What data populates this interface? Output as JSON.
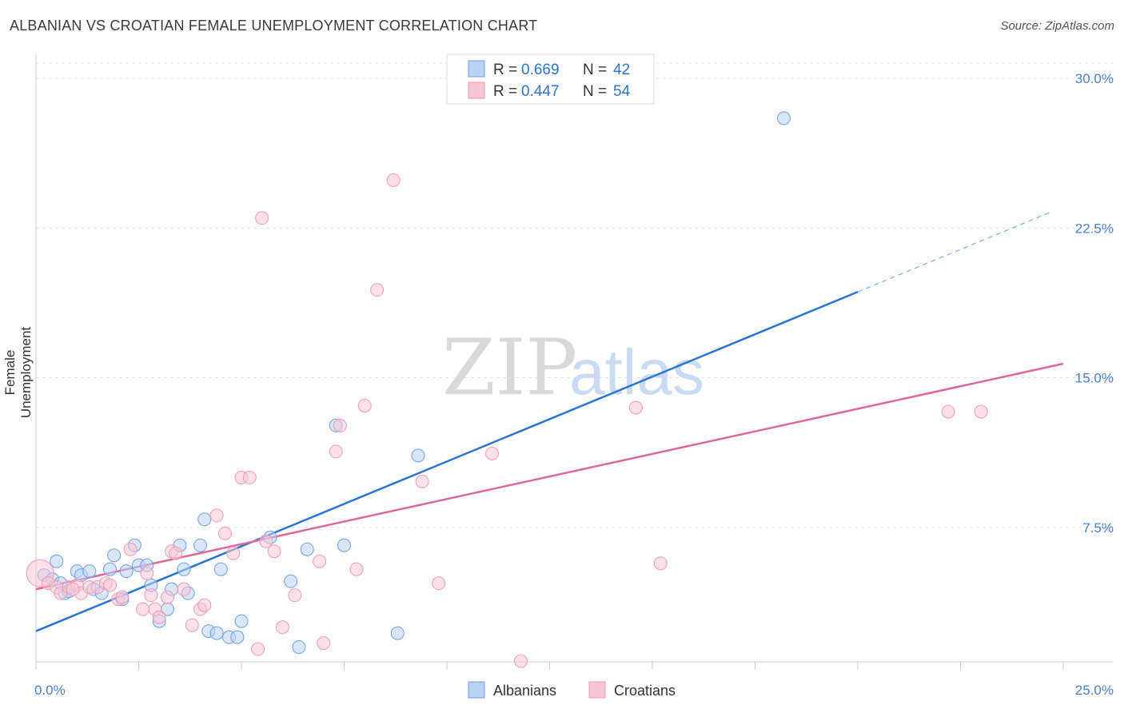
{
  "title": "ALBANIAN VS CROATIAN FEMALE UNEMPLOYMENT CORRELATION CHART",
  "source": "Source: ZipAtlas.com",
  "watermark": {
    "zip": "ZIP",
    "atlas": "atlas"
  },
  "chart_data": {
    "type": "scatter",
    "ylabel": "Female Unemployment",
    "xlim": [
      0,
      25
    ],
    "ylim": [
      0,
      30
    ],
    "x_ticks": [
      "0.0%",
      "25.0%"
    ],
    "y_ticks": [
      {
        "value": 7.5,
        "label": "7.5%"
      },
      {
        "value": 15.0,
        "label": "15.0%"
      },
      {
        "value": 22.5,
        "label": "22.5%"
      },
      {
        "value": 30.0,
        "label": "30.0%"
      }
    ],
    "grid": true,
    "legend": {
      "position": "top-center",
      "entries": [
        {
          "r_label": "R =",
          "r_value": "0.669",
          "n_label": "N =",
          "n_value": "42"
        },
        {
          "r_label": "R =",
          "r_value": "0.447",
          "n_label": "N =",
          "n_value": "54"
        }
      ]
    },
    "series": [
      {
        "name": "Albanians",
        "color": "#6fa0e6",
        "fill": "#b9d1f3",
        "trend_color": "#2b74d2",
        "trend": {
          "x0": 0,
          "y0": 2.3,
          "x1": 20,
          "y1": 19.3,
          "dash_x1": 24.7,
          "dash_y1": 23.3
        },
        "points": [
          [
            0.2,
            5.1
          ],
          [
            0.4,
            4.9
          ],
          [
            0.5,
            5.8
          ],
          [
            0.6,
            4.7
          ],
          [
            0.7,
            4.2
          ],
          [
            0.8,
            4.3
          ],
          [
            1.0,
            5.3
          ],
          [
            1.1,
            5.1
          ],
          [
            1.3,
            5.3
          ],
          [
            1.4,
            4.4
          ],
          [
            1.6,
            4.2
          ],
          [
            1.8,
            5.4
          ],
          [
            1.9,
            6.1
          ],
          [
            2.1,
            3.9
          ],
          [
            2.2,
            5.3
          ],
          [
            2.4,
            6.6
          ],
          [
            2.5,
            5.6
          ],
          [
            2.7,
            5.6
          ],
          [
            2.8,
            4.6
          ],
          [
            3.0,
            2.8
          ],
          [
            3.2,
            3.4
          ],
          [
            3.3,
            4.4
          ],
          [
            3.5,
            6.6
          ],
          [
            3.6,
            5.4
          ],
          [
            3.7,
            4.2
          ],
          [
            4.0,
            6.6
          ],
          [
            4.1,
            7.9
          ],
          [
            4.2,
            2.3
          ],
          [
            4.4,
            2.2
          ],
          [
            4.5,
            5.4
          ],
          [
            4.7,
            2.0
          ],
          [
            4.9,
            2.0
          ],
          [
            5.0,
            2.8
          ],
          [
            5.7,
            7.0
          ],
          [
            6.2,
            4.8
          ],
          [
            6.4,
            1.5
          ],
          [
            6.6,
            6.4
          ],
          [
            7.3,
            12.6
          ],
          [
            7.5,
            6.6
          ],
          [
            8.8,
            2.2
          ],
          [
            9.3,
            11.1
          ],
          [
            18.2,
            28.0
          ]
        ]
      },
      {
        "name": "Croatians",
        "color": "#ef9ab5",
        "fill": "#f7c6d5",
        "trend_color": "#e0679a",
        "trend": {
          "x0": 0,
          "y0": 4.4,
          "x1": 25,
          "y1": 15.7
        },
        "points": [
          [
            0.1,
            5.2
          ],
          [
            0.3,
            4.7
          ],
          [
            0.5,
            4.5
          ],
          [
            0.6,
            4.2
          ],
          [
            0.8,
            4.5
          ],
          [
            1.0,
            4.6
          ],
          [
            1.1,
            4.2
          ],
          [
            1.3,
            4.5
          ],
          [
            1.5,
            4.5
          ],
          [
            1.7,
            4.7
          ],
          [
            1.8,
            4.6
          ],
          [
            2.0,
            3.9
          ],
          [
            2.1,
            4.0
          ],
          [
            2.3,
            6.4
          ],
          [
            2.6,
            3.4
          ],
          [
            2.7,
            5.2
          ],
          [
            2.9,
            3.4
          ],
          [
            3.0,
            3.0
          ],
          [
            3.2,
            4.0
          ],
          [
            3.3,
            6.3
          ],
          [
            3.4,
            6.2
          ],
          [
            3.6,
            4.4
          ],
          [
            3.8,
            2.6
          ],
          [
            4.0,
            3.4
          ],
          [
            4.1,
            3.6
          ],
          [
            4.4,
            8.1
          ],
          [
            4.6,
            7.2
          ],
          [
            4.8,
            6.2
          ],
          [
            5.0,
            10.0
          ],
          [
            5.2,
            10.0
          ],
          [
            5.4,
            1.4
          ],
          [
            5.5,
            23.0
          ],
          [
            5.6,
            6.8
          ],
          [
            5.8,
            6.3
          ],
          [
            6.0,
            2.5
          ],
          [
            6.3,
            4.1
          ],
          [
            6.9,
            5.8
          ],
          [
            7.0,
            1.7
          ],
          [
            7.3,
            11.3
          ],
          [
            7.4,
            12.6
          ],
          [
            7.8,
            5.4
          ],
          [
            8.0,
            13.6
          ],
          [
            8.3,
            19.4
          ],
          [
            8.7,
            24.9
          ],
          [
            9.4,
            9.8
          ],
          [
            9.8,
            4.7
          ],
          [
            11.1,
            11.2
          ],
          [
            11.8,
            0.8
          ],
          [
            14.6,
            13.5
          ],
          [
            15.2,
            5.7
          ],
          [
            22.2,
            13.3
          ],
          [
            23.0,
            13.3
          ],
          [
            0.9,
            4.4
          ],
          [
            2.8,
            4.1
          ]
        ]
      }
    ]
  }
}
